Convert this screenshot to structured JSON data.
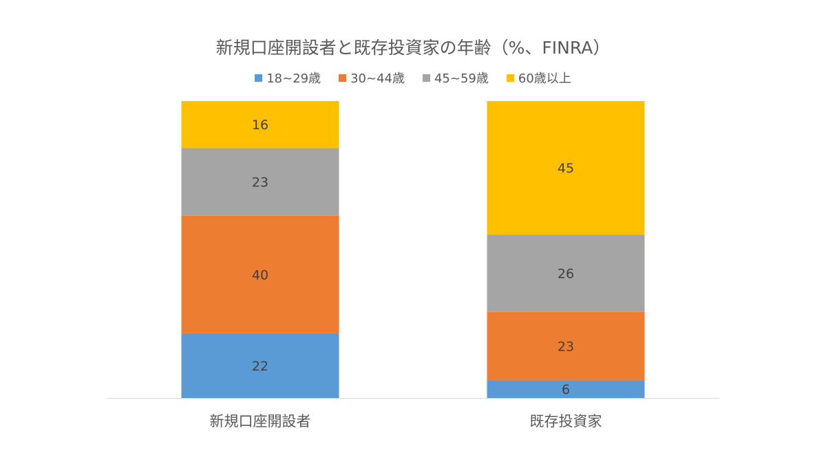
{
  "chart_data": {
    "type": "bar",
    "stacked": "percent",
    "title": "新規口座開設者と既存投資家の年齢（%、FINRA）",
    "categories": [
      "新規口座開設者",
      "既存投資家"
    ],
    "series": [
      {
        "name": "18~29歳",
        "values": [
          22,
          6
        ],
        "color": "#5B9BD5"
      },
      {
        "name": "30~44歳",
        "values": [
          40,
          23
        ],
        "color": "#ED7D31"
      },
      {
        "name": "45~59歳",
        "values": [
          23,
          26
        ],
        "color": "#A5A5A5"
      },
      {
        "name": "60歳以上",
        "values": [
          16,
          45
        ],
        "color": "#FFC000"
      }
    ],
    "data_labels": true,
    "legend": "top",
    "grid": false,
    "y_axis_visible": false
  }
}
